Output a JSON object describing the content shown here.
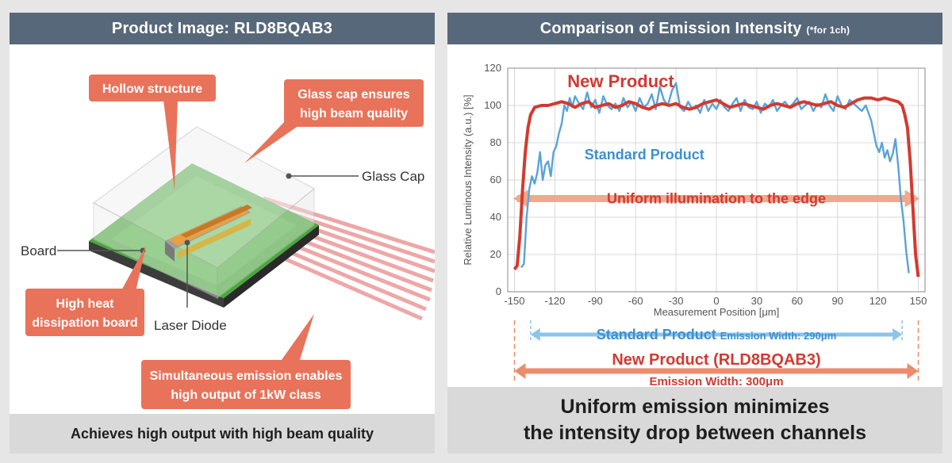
{
  "left": {
    "title": "Product Image: RLD8BQAB3",
    "callouts": {
      "hollow": "Hollow structure",
      "glass_cap_line1": "Glass cap ensures",
      "glass_cap_line2": "high beam quality",
      "heat_line1": "High heat",
      "heat_line2": "dissipation board",
      "emission_line1": "Simultaneous emission enables",
      "emission_line2": "high output of 1kW class"
    },
    "labels": {
      "glass_cap": "Glass Cap",
      "board": "Board",
      "laser_diode": "Laser Diode"
    },
    "footer": "Achieves high output with high beam quality"
  },
  "right": {
    "title": "Comparison of Emission Intensity",
    "title_note": "(*for 1ch)",
    "footer_line1": "Uniform emission minimizes",
    "footer_line2": "the intensity drop between channels",
    "width_annotations": {
      "standard_name": "Standard Product",
      "standard_width": "Emission Width: 290μm",
      "new_name": "New Product (RLD8BQAB3)",
      "new_width": "Emission Width: 300μm"
    }
  },
  "colors": {
    "header": "#57687a",
    "callout": "#e8735a",
    "new_product": "#d23a30",
    "standard_product": "#5aa3d8",
    "board_green": "#48a83a"
  },
  "chart_data": {
    "type": "line",
    "title": "",
    "xlabel": "Measurement Position [μm]",
    "ylabel": "Relative Luminous Intensity (a.u.) [%]",
    "xlim": [
      -155,
      155
    ],
    "ylim": [
      0,
      120
    ],
    "xticks": [
      -150,
      -120,
      -90,
      -60,
      -30,
      0,
      30,
      60,
      90,
      120,
      150
    ],
    "yticks": [
      0,
      20,
      40,
      60,
      80,
      100,
      120
    ],
    "grid": true,
    "series": [
      {
        "name": "New Product",
        "color": "#d23a30",
        "x": [
          -150,
          -148,
          -146,
          -144,
          -142,
          -140,
          -138,
          -135,
          -130,
          -125,
          -120,
          -115,
          -110,
          -105,
          -100,
          -95,
          -90,
          -85,
          -80,
          -75,
          -70,
          -65,
          -60,
          -55,
          -50,
          -45,
          -40,
          -35,
          -30,
          -25,
          -20,
          -15,
          -10,
          -5,
          0,
          5,
          10,
          15,
          20,
          25,
          30,
          35,
          40,
          45,
          50,
          55,
          60,
          65,
          70,
          75,
          80,
          85,
          90,
          95,
          100,
          105,
          110,
          115,
          120,
          125,
          130,
          135,
          138,
          140,
          142,
          144,
          146,
          148,
          150
        ],
        "y": [
          12,
          14,
          30,
          55,
          75,
          88,
          95,
          99,
          100,
          100,
          101,
          102,
          101,
          99,
          101,
          102,
          99,
          100,
          101,
          99,
          100,
          102,
          101,
          99,
          98,
          100,
          101,
          100,
          101,
          99,
          98,
          99,
          101,
          102,
          103,
          101,
          99,
          100,
          101,
          100,
          99,
          98,
          100,
          101,
          100,
          99,
          101,
          102,
          101,
          100,
          101,
          102,
          100,
          99,
          101,
          103,
          104,
          104,
          103,
          104,
          103,
          102,
          100,
          95,
          88,
          70,
          45,
          20,
          8
        ]
      },
      {
        "name": "Standard Product",
        "color": "#5aa3d8",
        "x": [
          -145,
          -143,
          -141,
          -139,
          -137,
          -135,
          -133,
          -131,
          -129,
          -127,
          -125,
          -123,
          -121,
          -119,
          -117,
          -115,
          -113,
          -111,
          -109,
          -107,
          -105,
          -102,
          -99,
          -96,
          -93,
          -90,
          -87,
          -84,
          -81,
          -78,
          -75,
          -72,
          -69,
          -66,
          -63,
          -60,
          -57,
          -54,
          -51,
          -48,
          -45,
          -42,
          -39,
          -36,
          -33,
          -30,
          -27,
          -24,
          -21,
          -18,
          -15,
          -12,
          -9,
          -6,
          -3,
          0,
          3,
          6,
          9,
          12,
          15,
          18,
          21,
          24,
          27,
          30,
          33,
          36,
          39,
          42,
          45,
          48,
          51,
          54,
          57,
          60,
          63,
          66,
          69,
          72,
          75,
          78,
          81,
          84,
          87,
          90,
          93,
          96,
          99,
          102,
          105,
          108,
          111,
          113,
          115,
          117,
          119,
          121,
          123,
          125,
          127,
          129,
          131,
          133,
          135,
          137,
          139,
          141,
          143
        ],
        "y": [
          13,
          15,
          40,
          55,
          62,
          58,
          64,
          75,
          60,
          68,
          70,
          62,
          75,
          78,
          85,
          90,
          100,
          97,
          104,
          99,
          105,
          101,
          98,
          107,
          99,
          103,
          96,
          105,
          100,
          98,
          101,
          97,
          104,
          99,
          102,
          97,
          104,
          99,
          101,
          106,
          98,
          110,
          103,
          100,
          108,
          112,
          99,
          97,
          102,
          98,
          100,
          96,
          103,
          97,
          101,
          98,
          103,
          99,
          97,
          101,
          104,
          97,
          103,
          99,
          98,
          102,
          96,
          101,
          99,
          103,
          97,
          100,
          102,
          99,
          101,
          104,
          98,
          100,
          102,
          97,
          101,
          99,
          106,
          100,
          97,
          105,
          100,
          98,
          103,
          101,
          99,
          97,
          100,
          96,
          92,
          85,
          78,
          75,
          80,
          72,
          76,
          70,
          74,
          82,
          68,
          50,
          38,
          22,
          10
        ]
      }
    ],
    "annotations": {
      "new_product_label": "New Product",
      "standard_product_label": "Standard Product",
      "uniform_label": "Uniform illumination to the edge"
    }
  }
}
